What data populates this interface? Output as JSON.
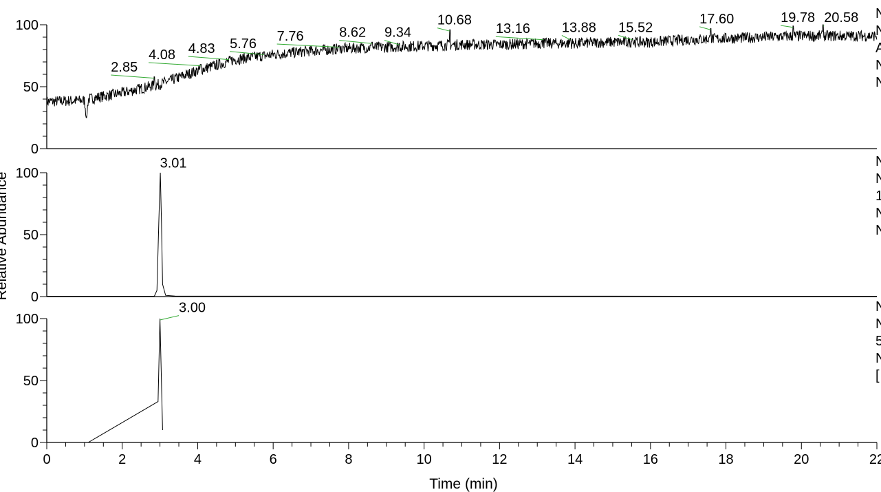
{
  "chart_data": [
    {
      "type": "line",
      "panel": "top",
      "title": "",
      "ylabel": "Relative Abundance",
      "xlabel": "Time (min)",
      "xlim": [
        0,
        22
      ],
      "ylim": [
        0,
        100
      ],
      "y_ticks": [
        "0",
        "50",
        "100"
      ],
      "color_trace": "#000000",
      "color_marker": "#33aa33",
      "peak_labels": [
        {
          "x": 2.85,
          "y": 58,
          "text": "2.85",
          "label_x": 1.7,
          "label_y": 60
        },
        {
          "x": 4.08,
          "y": 68,
          "text": "4.08",
          "label_x": 2.7,
          "label_y": 70
        },
        {
          "x": 4.83,
          "y": 73,
          "text": "4.83",
          "label_x": 3.75,
          "label_y": 75
        },
        {
          "x": 5.76,
          "y": 77,
          "text": "5.76",
          "label_x": 4.85,
          "label_y": 79
        },
        {
          "x": 7.76,
          "y": 83,
          "text": "7.76",
          "label_x": 6.1,
          "label_y": 85
        },
        {
          "x": 8.62,
          "y": 86,
          "text": "8.62",
          "label_x": 7.75,
          "label_y": 88
        },
        {
          "x": 9.34,
          "y": 85,
          "text": "9.34",
          "label_x": 8.95,
          "label_y": 88
        },
        {
          "x": 10.68,
          "y": 96,
          "text": "10.68",
          "label_x": 10.35,
          "label_y": 98
        },
        {
          "x": 13.16,
          "y": 89,
          "text": "13.16",
          "label_x": 11.9,
          "label_y": 91
        },
        {
          "x": 13.88,
          "y": 89,
          "text": "13.88",
          "label_x": 13.65,
          "label_y": 92
        },
        {
          "x": 15.52,
          "y": 89,
          "text": "15.52",
          "label_x": 15.15,
          "label_y": 92
        },
        {
          "x": 17.6,
          "y": 97,
          "text": "17.60",
          "label_x": 17.3,
          "label_y": 99
        },
        {
          "x": 19.78,
          "y": 99,
          "text": "19.78",
          "label_x": 19.45,
          "label_y": 100
        },
        {
          "x": 20.58,
          "y": 100,
          "text": "20.58",
          "label_x": 20.6,
          "label_y": 100
        }
      ],
      "baseline": [
        [
          0,
          38
        ],
        [
          1,
          39
        ],
        [
          1.05,
          25
        ],
        [
          1.1,
          40
        ],
        [
          2,
          45
        ],
        [
          3,
          52
        ],
        [
          4,
          63
        ],
        [
          5,
          72
        ],
        [
          6,
          76
        ],
        [
          7,
          79
        ],
        [
          8,
          81
        ],
        [
          9,
          82
        ],
        [
          10,
          83
        ],
        [
          11,
          84
        ],
        [
          12,
          84
        ],
        [
          13,
          85
        ],
        [
          14,
          85
        ],
        [
          15,
          86
        ],
        [
          16,
          86
        ],
        [
          17,
          88
        ],
        [
          18,
          89
        ],
        [
          19,
          90
        ],
        [
          20,
          91
        ],
        [
          21,
          91
        ],
        [
          22,
          91
        ]
      ]
    },
    {
      "type": "line",
      "panel": "middle",
      "xlim": [
        0,
        22
      ],
      "ylim": [
        0,
        100
      ],
      "y_ticks": [
        "0",
        "50",
        "100"
      ],
      "color_trace": "#000000",
      "peak_labels": [
        {
          "x": 3.01,
          "y": 100,
          "text": "3.01",
          "label_x": 3.0,
          "label_y": 102
        }
      ],
      "series": [
        [
          0,
          0.3
        ],
        [
          2.85,
          0.3
        ],
        [
          2.92,
          5
        ],
        [
          2.97,
          60
        ],
        [
          3.01,
          100
        ],
        [
          3.04,
          60
        ],
        [
          3.07,
          10
        ],
        [
          3.15,
          1
        ],
        [
          3.4,
          0.4
        ],
        [
          22,
          0.3
        ]
      ]
    },
    {
      "type": "line",
      "panel": "bottom",
      "xlim": [
        0,
        22
      ],
      "ylim": [
        0,
        100
      ],
      "y_ticks": [
        "0",
        "50",
        "100"
      ],
      "x_ticks": [
        "0",
        "2",
        "4",
        "6",
        "8",
        "10",
        "12",
        "14",
        "16",
        "18",
        "20",
        "22"
      ],
      "color_trace": "#000000",
      "color_marker": "#33aa33",
      "peak_labels": [
        {
          "x": 3.0,
          "y": 100,
          "text": "3.00",
          "label_x": 3.5,
          "label_y": 103
        }
      ],
      "series": [
        [
          1.1,
          0
        ],
        [
          2.95,
          33
        ],
        [
          3.0,
          100
        ],
        [
          3.07,
          10
        ]
      ]
    }
  ],
  "right_edge_fragments": {
    "top": [
      "N",
      "N",
      "A",
      "N",
      "N"
    ],
    "middle": [
      "N",
      "N",
      "1",
      "N",
      "N"
    ],
    "bottom": [
      "N",
      "N",
      "5",
      "N",
      "["
    ]
  }
}
